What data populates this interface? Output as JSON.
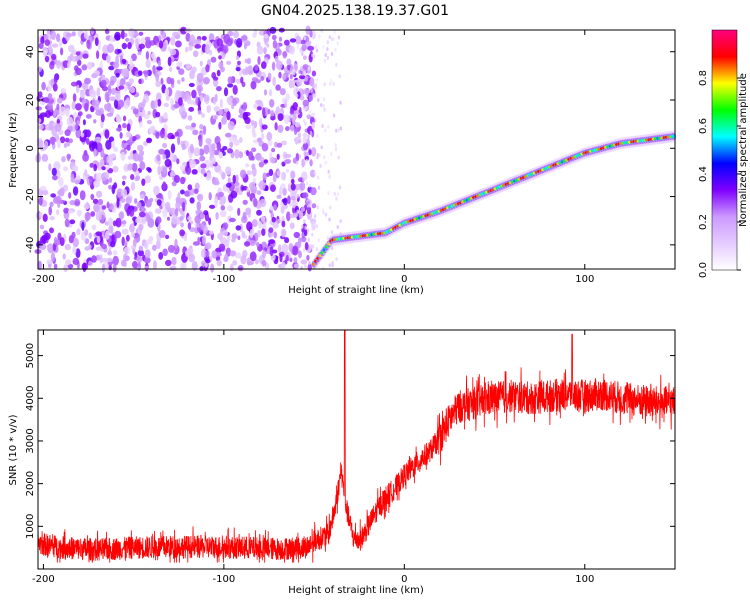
{
  "title": "GN04.2025.138.19.37.G01",
  "chart_data": [
    {
      "type": "heatmap",
      "xlabel": "Height of straight line (km)",
      "ylabel": "Frequency (Hz)",
      "xlim": [
        -203,
        150
      ],
      "ylim": [
        -50,
        49
      ],
      "x_ticks": [
        -200,
        -100,
        0,
        100
      ],
      "y_ticks": [
        -40,
        -20,
        0,
        20,
        40
      ],
      "colorbar": {
        "label": "Normalized spectral amplitude",
        "range": [
          0,
          1
        ],
        "ticks": [
          "0.0",
          "0.2",
          "0.4",
          "0.6",
          "0.8"
        ],
        "colors": [
          "#ffffff",
          "#e5ccff",
          "#cc99ff",
          "#8000ff",
          "#0000ff",
          "#00ffff",
          "#00ff00",
          "#ffff00",
          "#ff0000",
          "#ff0080"
        ]
      },
      "noise_region": {
        "x_range": [
          -203,
          -50
        ],
        "sparse_x_range": [
          -60,
          -35
        ],
        "level": "0.1-0.35"
      },
      "ridge": {
        "description_points": [
          {
            "x": -50,
            "y": -48
          },
          {
            "x": -45,
            "y": -43
          },
          {
            "x": -40,
            "y": -38
          },
          {
            "x": -30,
            "y": -37
          },
          {
            "x": -20,
            "y": -36
          },
          {
            "x": -10,
            "y": -35
          },
          {
            "x": 0,
            "y": -31
          },
          {
            "x": 20,
            "y": -26
          },
          {
            "x": 40,
            "y": -20
          },
          {
            "x": 60,
            "y": -14
          },
          {
            "x": 80,
            "y": -8
          },
          {
            "x": 100,
            "y": -2
          },
          {
            "x": 120,
            "y": 2
          },
          {
            "x": 150,
            "y": 5
          }
        ],
        "peak_amplitude": 0.9
      }
    },
    {
      "type": "line",
      "xlabel": "Height of straight line (km)",
      "ylabel": "SNR (10 * v/v)",
      "xlim": [
        -203,
        150
      ],
      "ylim": [
        0,
        5600
      ],
      "x_ticks": [
        -200,
        -100,
        0,
        100
      ],
      "y_ticks": [
        1000,
        2000,
        3000,
        4000,
        5000
      ],
      "series": [
        {
          "color": "#ff0000",
          "x": [
            -203,
            -190,
            -170,
            -150,
            -130,
            -110,
            -90,
            -70,
            -55,
            -48,
            -42,
            -38,
            -35,
            -32,
            -28,
            -24,
            -20,
            -15,
            -10,
            -5,
            0,
            5,
            10,
            15,
            20,
            25,
            30,
            40,
            50,
            60,
            70,
            80,
            90,
            100,
            110,
            120,
            130,
            140,
            150
          ],
          "y": [
            600,
            500,
            450,
            500,
            520,
            520,
            500,
            470,
            500,
            700,
            800,
            1500,
            2300,
            1400,
            700,
            700,
            1000,
            1400,
            1700,
            1900,
            2200,
            2400,
            2600,
            2800,
            3100,
            3500,
            3800,
            3900,
            4000,
            4050,
            4000,
            4050,
            4100,
            4050,
            4100,
            4000,
            3950,
            3900,
            3900
          ],
          "noise_amplitude": 300,
          "spikes": [
            {
              "x": -33,
              "y": 5600
            },
            {
              "x": 93,
              "y": 5500
            }
          ]
        }
      ]
    }
  ]
}
